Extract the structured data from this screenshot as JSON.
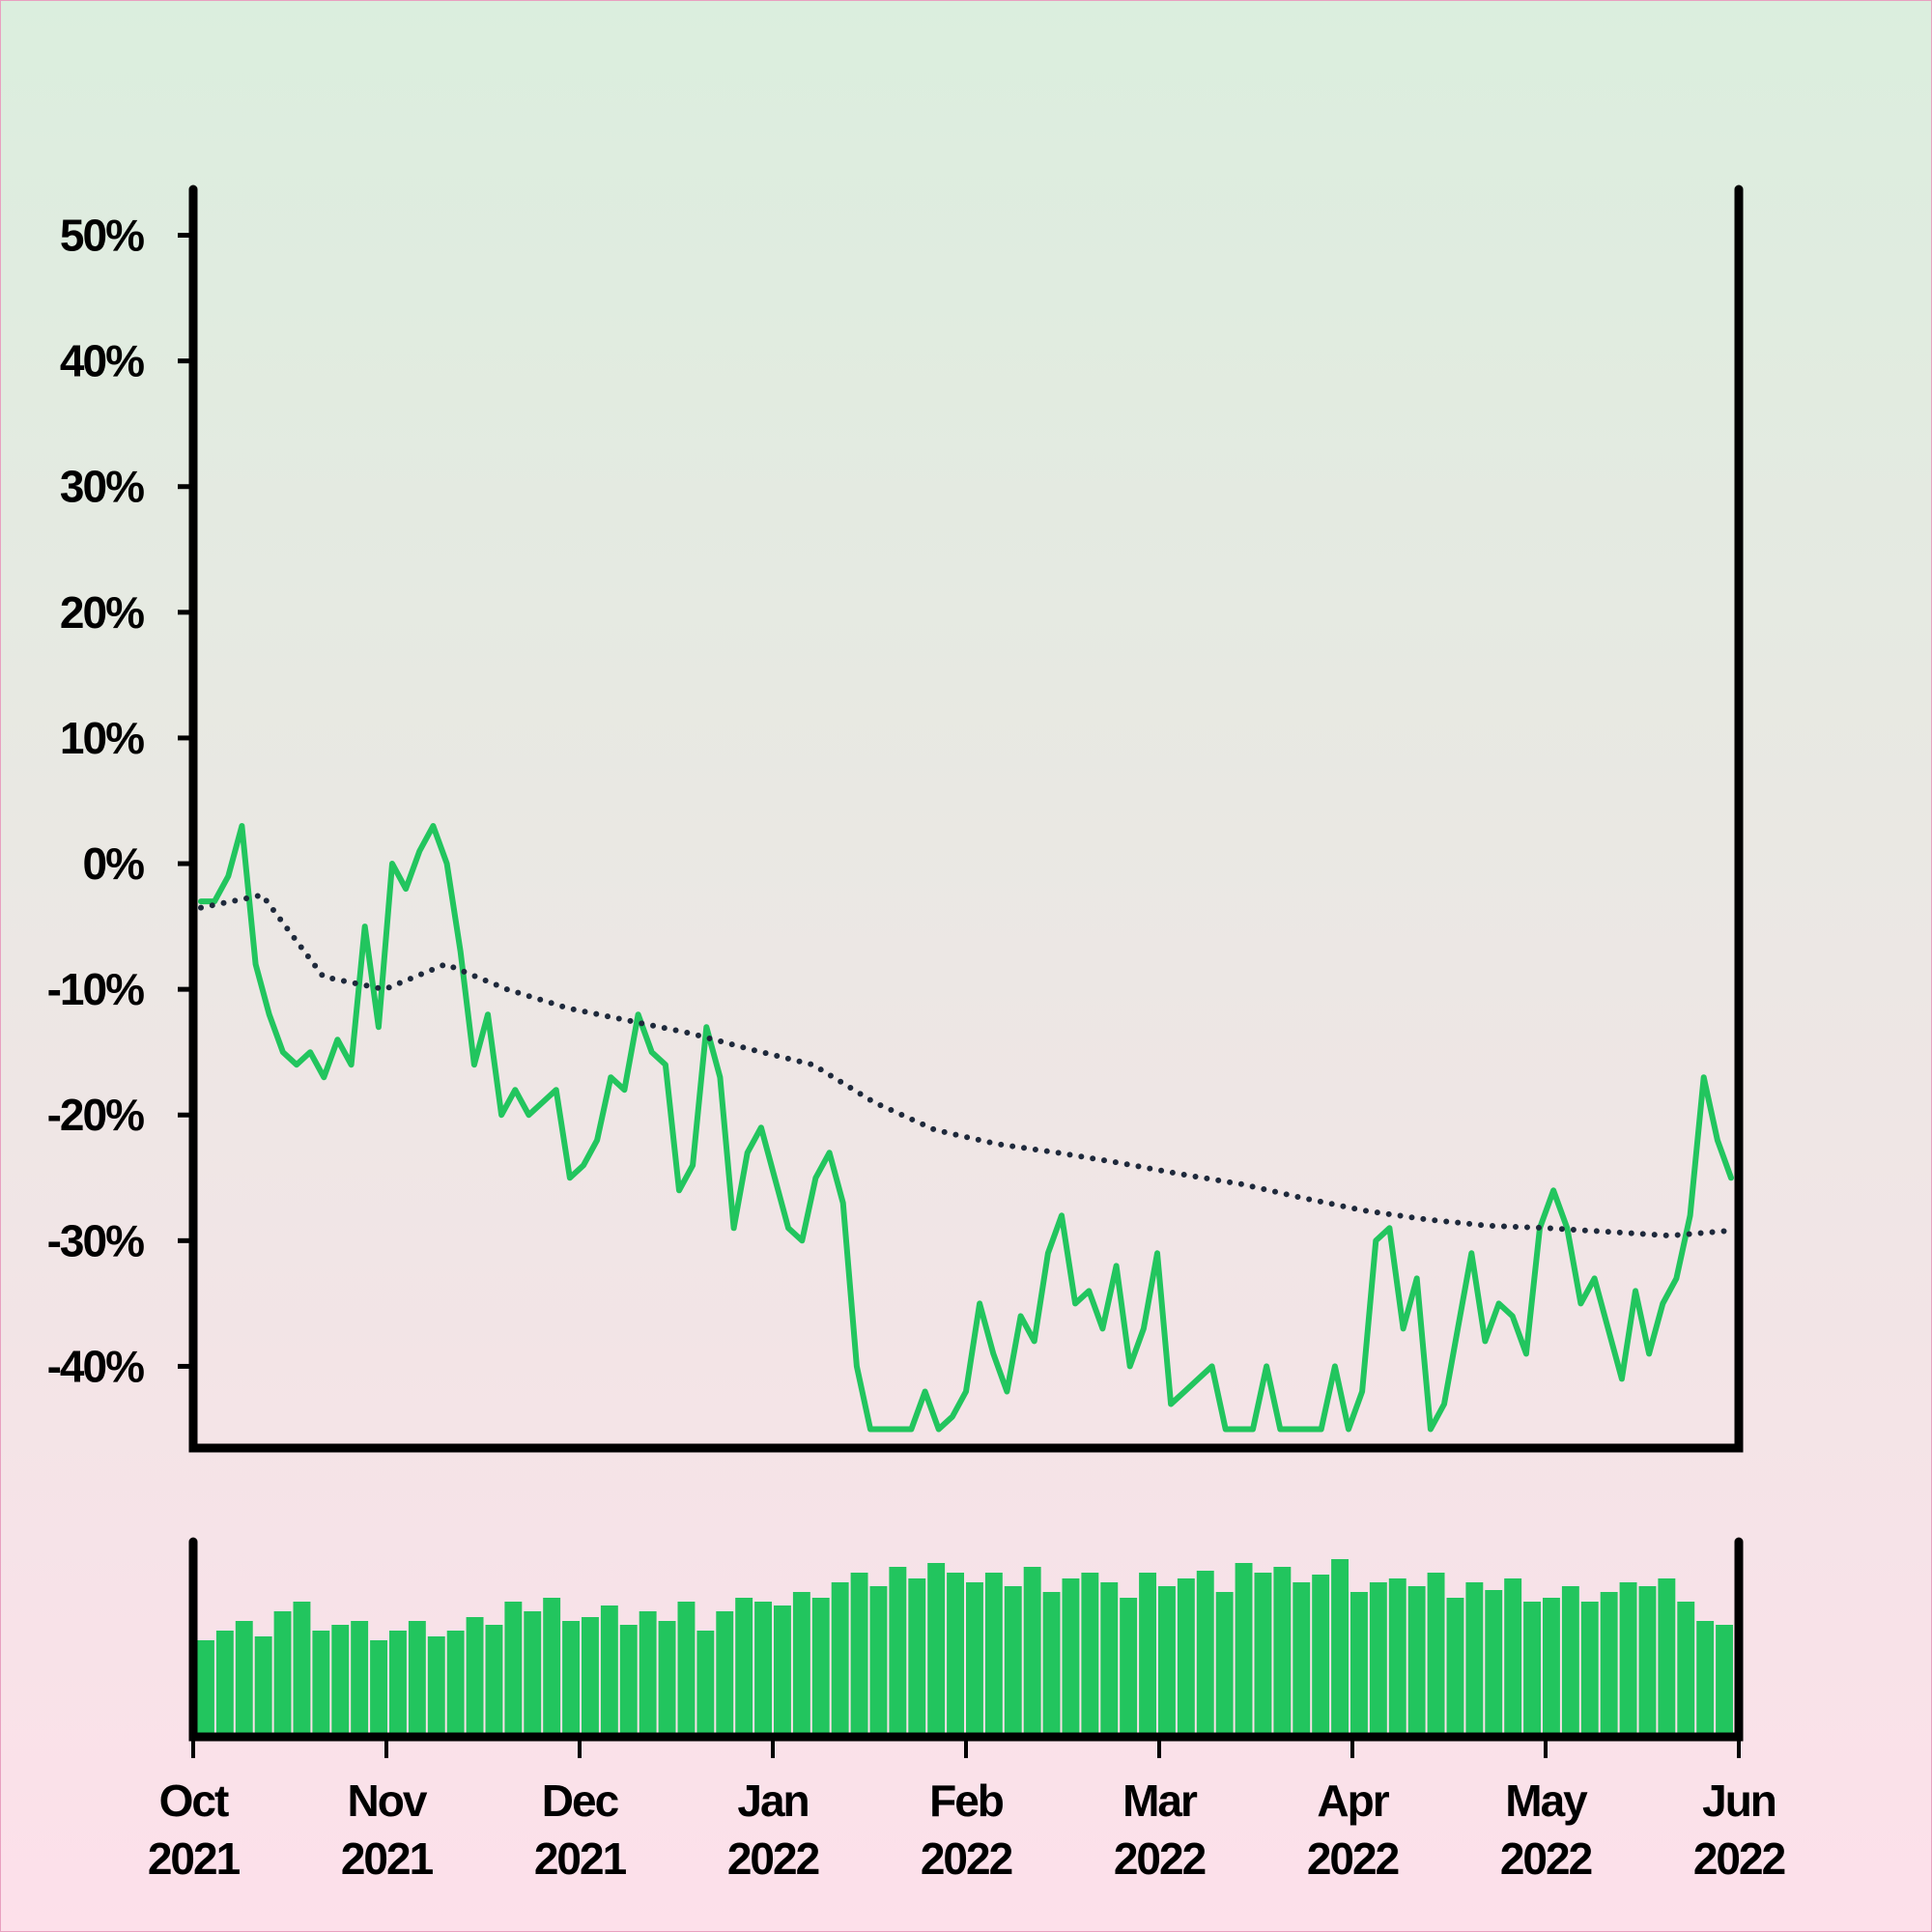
{
  "chart_data": [
    {
      "type": "line",
      "xlim": [
        "2021-10",
        "2022-06"
      ],
      "ylim": [
        -46.5,
        53.5
      ],
      "yticks": [
        {
          "value": 50,
          "label": "50%"
        },
        {
          "value": 40,
          "label": "40%"
        },
        {
          "value": 30,
          "label": "30%"
        },
        {
          "value": 20,
          "label": "20%"
        },
        {
          "value": 10,
          "label": "10%"
        },
        {
          "value": 0,
          "label": "0%"
        },
        {
          "value": -10,
          "label": "-10%"
        },
        {
          "value": -20,
          "label": "-20%"
        },
        {
          "value": -30,
          "label": "-30%"
        },
        {
          "value": -40,
          "label": "-40%"
        }
      ],
      "series": [
        {
          "color": "#22c55e",
          "style": "solid",
          "values": [
            -3,
            -3,
            -1,
            3,
            -8,
            -12,
            -15,
            -16,
            -15,
            -17,
            -14,
            -16,
            -5,
            -13,
            0,
            -2,
            1,
            3,
            0,
            -7,
            -16,
            -12,
            -20,
            -18,
            -20,
            -19,
            -18,
            -25,
            -24,
            -22,
            -17,
            -18,
            -12,
            -15,
            -16,
            -26,
            -24,
            -13,
            -17,
            -29,
            -23,
            -21,
            -25,
            -29,
            -30,
            -25,
            -23,
            -27,
            -40,
            -45,
            -45,
            -45,
            -45,
            -42,
            -45,
            -44,
            -42,
            -35,
            -39,
            -42,
            -36,
            -38,
            -31,
            -28,
            -35,
            -34,
            -37,
            -32,
            -40,
            -37,
            -31,
            -43,
            -42,
            -41,
            -40,
            -45,
            -45,
            -45,
            -40,
            -45,
            -45,
            -45,
            -45,
            -40,
            -45,
            -42,
            -30,
            -29,
            -37,
            -33,
            -45,
            -43,
            -37,
            -31,
            -38,
            -35,
            -36,
            -39,
            -29,
            -26,
            -29,
            -35,
            -33,
            -37,
            -41,
            -34,
            -39,
            -35,
            -33,
            -28,
            -17,
            -22,
            -25
          ]
        },
        {
          "color": "#1e293b",
          "style": "dotted",
          "values": [
            -3.5,
            -2.5,
            -9,
            -10,
            -8,
            -10,
            -11.5,
            -12.5,
            -13.5,
            -14.8,
            -16,
            -19,
            -21.2,
            -22.3,
            -23,
            -23.8,
            -24.7,
            -25.5,
            -26.6,
            -27.6,
            -28.3,
            -28.8,
            -29,
            -29.3,
            -29.6,
            -29.2
          ]
        }
      ]
    },
    {
      "type": "bar",
      "color": "#22c55e",
      "xlim": [
        "2021-10",
        "2022-06"
      ],
      "ylim": [
        0,
        100
      ],
      "values": [
        50,
        55,
        60,
        52,
        65,
        70,
        55,
        58,
        60,
        50,
        55,
        60,
        52,
        55,
        62,
        58,
        70,
        65,
        72,
        60,
        62,
        68,
        58,
        65,
        60,
        70,
        55,
        65,
        72,
        70,
        68,
        75,
        72,
        80,
        85,
        78,
        88,
        82,
        90,
        85,
        80,
        85,
        78,
        88,
        75,
        82,
        85,
        80,
        72,
        85,
        78,
        82,
        86,
        75,
        90,
        85,
        88,
        80,
        84,
        92,
        75,
        80,
        82,
        78,
        85,
        72,
        80,
        76,
        82,
        70,
        72,
        78,
        70,
        75,
        80,
        78,
        82,
        70,
        60,
        58
      ],
      "xticks": [
        {
          "value": "2021-10",
          "label": "Oct 2021"
        },
        {
          "value": "2021-11",
          "label": "Nov 2021"
        },
        {
          "value": "2021-12",
          "label": "Dec 2021"
        },
        {
          "value": "2022-01",
          "label": "Jan 2022"
        },
        {
          "value": "2022-02",
          "label": "Feb 2022"
        },
        {
          "value": "2022-03",
          "label": "Mar 2022"
        },
        {
          "value": "2022-04",
          "label": "Apr 2022"
        },
        {
          "value": "2022-05",
          "label": "May 2022"
        },
        {
          "value": "2022-06",
          "label": "Jun 2022"
        }
      ]
    }
  ]
}
